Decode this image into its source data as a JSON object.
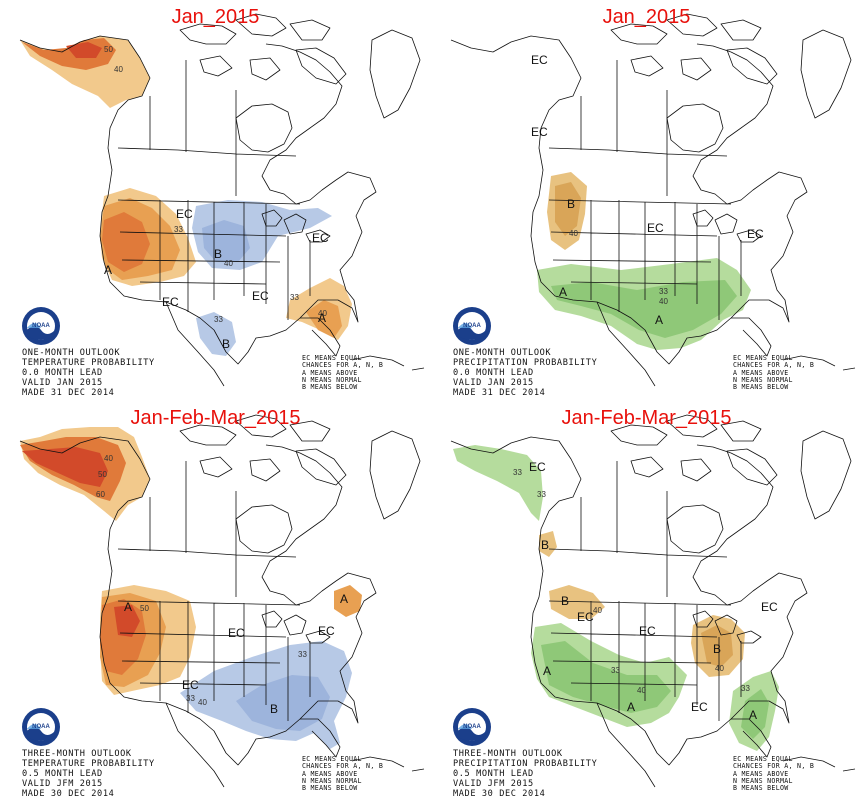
{
  "panels": [
    {
      "title": "Jan_2015",
      "caption": [
        "ONE-MONTH OUTLOOK",
        "TEMPERATURE PROBABILITY",
        "0.0 MONTH LEAD",
        "VALID JAN 2015",
        "MADE 31 DEC 2014"
      ],
      "labels": {
        "ec1": "EC",
        "ec2": "EC",
        "ec3": "EC",
        "ec4": "EC",
        "a": "A",
        "b1": "B",
        "b2": "B",
        "a2": "A"
      },
      "contours": {
        "c50": "50",
        "c40": "40",
        "c33a": "33",
        "c40b": "40",
        "c33b": "33",
        "c33c": "33",
        "c40c": "40"
      }
    },
    {
      "title": "Jan_2015",
      "caption": [
        "ONE-MONTH OUTLOOK",
        "PRECIPITATION PROBABILITY",
        "0.0 MONTH LEAD",
        "VALID JAN 2015",
        "MADE 31 DEC 2014"
      ],
      "labels": {
        "ec1": "EC",
        "ec2": "EC",
        "ec3": "EC",
        "ec4": "EC",
        "b": "B",
        "a1": "A",
        "a2": "A"
      },
      "contours": {
        "c40": "40",
        "c33": "33",
        "c40b": "40"
      }
    },
    {
      "title": "Jan-Feb-Mar_2015",
      "caption": [
        "THREE-MONTH OUTLOOK",
        "TEMPERATURE PROBABILITY",
        "0.5 MONTH LEAD",
        "VALID JFM 2015",
        "MADE 30 DEC 2014"
      ],
      "labels": {
        "ec1": "EC",
        "ec2": "EC",
        "ec3": "EC",
        "a1": "A",
        "a2": "A",
        "b": "B"
      },
      "contours": {
        "c40": "40",
        "c50": "50",
        "c60": "60",
        "c50b": "50",
        "c33": "33",
        "c40b": "40",
        "c33b": "33"
      }
    },
    {
      "title": "Jan-Feb-Mar_2015",
      "caption": [
        "THREE-MONTH OUTLOOK",
        "PRECIPITATION PROBABILITY",
        "0.5 MONTH LEAD",
        "VALID JFM 2015",
        "MADE 30 DEC 2014"
      ],
      "labels": {
        "ec1": "EC",
        "ec2": "EC",
        "ec3": "EC",
        "ec4": "EC",
        "ec5": "EC",
        "b1": "B",
        "b2": "B",
        "b3": "B",
        "a1": "A",
        "a2": "A",
        "a3": "A"
      },
      "contours": {
        "c33a": "33",
        "c33b": "33",
        "c40": "40",
        "c40b": "40",
        "c33c": "33",
        "c40c": "40",
        "c33d": "33"
      }
    }
  ],
  "legend": [
    "EC MEANS EQUAL",
    "CHANCES FOR A, N, B",
    "A MEANS ABOVE",
    "N MEANS NORMAL",
    "B MEANS BELOW"
  ],
  "logo_text": "NOAA",
  "colors": {
    "above_light": "#f2c98c",
    "above_mid": "#e8a052",
    "above_dark": "#e07a3a",
    "above_deep": "#d24a2a",
    "below_light": "#b7c9e6",
    "below_mid": "#9db4dc",
    "wet_light": "#b5dc9d",
    "wet_mid": "#8fc878",
    "dry_light": "#e8c280",
    "dry_mid": "#d9a558",
    "title_red": "#e8110c"
  }
}
